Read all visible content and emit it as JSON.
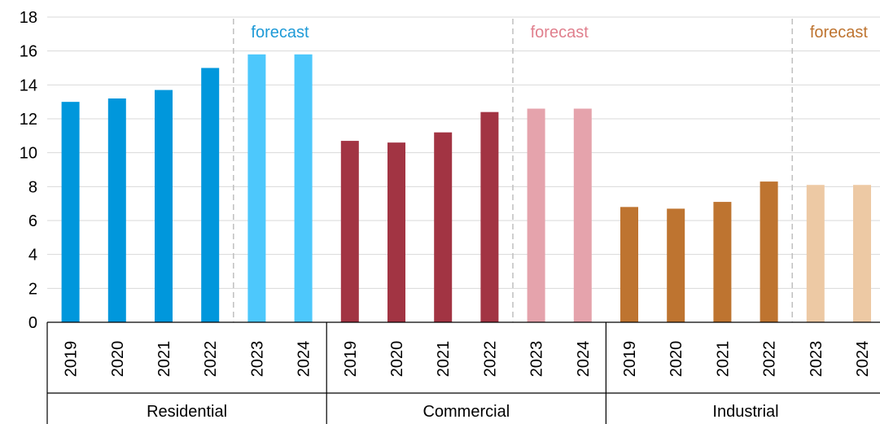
{
  "chart_data": {
    "type": "bar",
    "title": "",
    "xlabel": "",
    "ylabel": "",
    "ylim": [
      0,
      18
    ],
    "yticks": [
      "0",
      "2",
      "4",
      "6",
      "8",
      "10",
      "12",
      "14",
      "16",
      "18"
    ],
    "grid": true,
    "groups": [
      {
        "name": "Residential",
        "forecast_label": "forecast",
        "color_actual": "#0097DC",
        "color_forecast": "#4DC8FC",
        "label_color": "#1E9AD7",
        "bars": [
          {
            "year": "2019",
            "value": 13.0,
            "forecast": false
          },
          {
            "year": "2020",
            "value": 13.2,
            "forecast": false
          },
          {
            "year": "2021",
            "value": 13.7,
            "forecast": false
          },
          {
            "year": "2022",
            "value": 15.0,
            "forecast": false
          },
          {
            "year": "2023",
            "value": 15.8,
            "forecast": true
          },
          {
            "year": "2024",
            "value": 15.8,
            "forecast": true
          }
        ]
      },
      {
        "name": "Commercial",
        "forecast_label": "forecast",
        "color_actual": "#A23443",
        "color_forecast": "#E5A3AC",
        "label_color": "#E07F8D",
        "bars": [
          {
            "year": "2019",
            "value": 10.7,
            "forecast": false
          },
          {
            "year": "2020",
            "value": 10.6,
            "forecast": false
          },
          {
            "year": "2021",
            "value": 11.2,
            "forecast": false
          },
          {
            "year": "2022",
            "value": 12.4,
            "forecast": false
          },
          {
            "year": "2023",
            "value": 12.6,
            "forecast": true
          },
          {
            "year": "2024",
            "value": 12.6,
            "forecast": true
          }
        ]
      },
      {
        "name": "Industrial",
        "forecast_label": "forecast",
        "color_actual": "#BE7430",
        "color_forecast": "#EDC9A4",
        "label_color": "#BE7430",
        "bars": [
          {
            "year": "2019",
            "value": 6.8,
            "forecast": false
          },
          {
            "year": "2020",
            "value": 6.7,
            "forecast": false
          },
          {
            "year": "2021",
            "value": 7.1,
            "forecast": false
          },
          {
            "year": "2022",
            "value": 8.3,
            "forecast": false
          },
          {
            "year": "2023",
            "value": 8.1,
            "forecast": true
          },
          {
            "year": "2024",
            "value": 8.1,
            "forecast": true
          }
        ]
      }
    ]
  }
}
